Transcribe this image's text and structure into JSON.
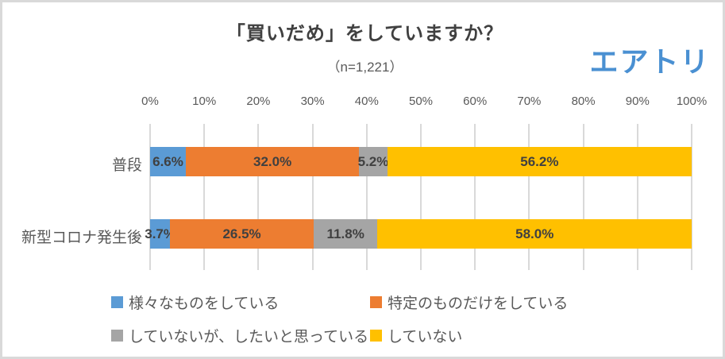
{
  "chart": {
    "title": "「買いだめ」をしていますか？",
    "subtitle": "（n=1,221）",
    "logo_text": "エアトリ",
    "logo_color": "#4a90d2"
  },
  "chart_data": {
    "type": "bar",
    "orientation": "horizontal-stacked",
    "title": "「買いだめ」をしていますか？",
    "subtitle": "（n=1,221）",
    "categories": [
      "普段",
      "新型コロナ発生後"
    ],
    "series": [
      {
        "name": "様々なものをしている",
        "color": "#5b9bd5",
        "values": [
          6.6,
          3.7
        ],
        "labels": [
          "6.6%",
          "3.7%"
        ]
      },
      {
        "name": "特定のものだけをしている",
        "color": "#ed7d31",
        "values": [
          32.0,
          26.5
        ],
        "labels": [
          "32.0%",
          "26.5%"
        ]
      },
      {
        "name": "していないが、したいと思っている",
        "color": "#a5a5a5",
        "values": [
          5.2,
          11.8
        ],
        "labels": [
          "5.2%",
          "11.8%"
        ]
      },
      {
        "name": "していない",
        "color": "#ffc000",
        "values": [
          56.2,
          58.0
        ],
        "labels": [
          "56.2%",
          "58.0%"
        ]
      }
    ],
    "x_ticks": [
      "0%",
      "10%",
      "20%",
      "30%",
      "40%",
      "50%",
      "60%",
      "70%",
      "80%",
      "90%",
      "100%"
    ],
    "xlim": [
      0,
      100
    ],
    "grid": true,
    "legend_position": "bottom"
  }
}
